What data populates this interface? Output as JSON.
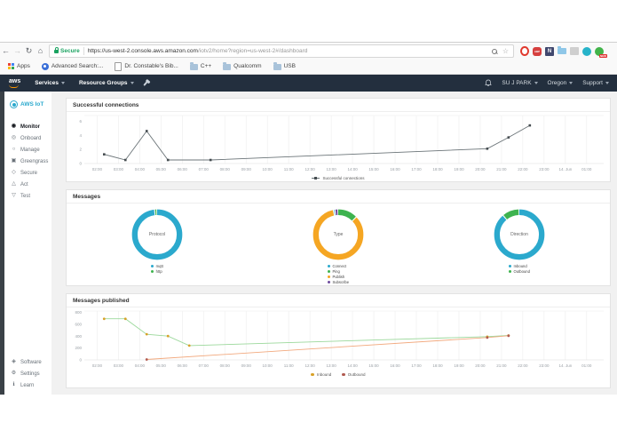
{
  "browser": {
    "address_bar": {
      "secure_label": "Secure",
      "url_host": "https://us-west-2.console.aws.amazon.com",
      "url_path": "/iotv2/home?region=us-west-2#/dashboard"
    },
    "extensions": [
      {
        "name": "red-ring-extension-icon"
      },
      {
        "name": "adblock-extension-icon",
        "label": "ABP"
      },
      {
        "name": "note-clipper-extension-icon",
        "label": "N"
      },
      {
        "name": "folder-extension-icon"
      },
      {
        "name": "gray-extension-icon"
      },
      {
        "name": "teal-circle-extension-icon"
      },
      {
        "name": "green-circle-extension-icon",
        "badge": "NEW"
      }
    ],
    "bookmarks": {
      "apps_label": "Apps",
      "items": [
        {
          "label": "Advanced Search:...",
          "icon": "badge-icon"
        },
        {
          "label": "Dr. Constable's Bib...",
          "icon": "page-icon"
        },
        {
          "label": "C++",
          "icon": "folder-icon"
        },
        {
          "label": "Qualcomm",
          "icon": "folder-icon"
        },
        {
          "label": "USB",
          "icon": "folder-icon"
        }
      ]
    }
  },
  "aws_nav": {
    "logo": "aws",
    "services": "Services",
    "resource_groups": "Resource Groups",
    "user": "SU J PARK",
    "region": "Oregon",
    "support": "Support"
  },
  "sidebar": {
    "title": "AWS IoT",
    "items": [
      {
        "label": "Monitor",
        "active": true
      },
      {
        "label": "Onboard"
      },
      {
        "label": "Manage"
      },
      {
        "label": "Greengrass"
      },
      {
        "label": "Secure"
      },
      {
        "label": "Act"
      },
      {
        "label": "Test"
      }
    ],
    "footer_items": [
      {
        "label": "Software"
      },
      {
        "label": "Settings"
      },
      {
        "label": "Learn"
      }
    ]
  },
  "panels": {
    "messages_title": "Messages"
  },
  "chart_data": [
    {
      "type": "line",
      "title": "Successful connections",
      "x_tick_labels": [
        "02:00",
        "03:00",
        "04:00",
        "05:00",
        "06:00",
        "07:00",
        "08:00",
        "09:00",
        "10:00",
        "11:00",
        "12:00",
        "13:00",
        "14:00",
        "15:00",
        "16:00",
        "17:00",
        "18:00",
        "19:00",
        "20:00",
        "21:00",
        "22:00",
        "23:00",
        "14. Jun",
        "01:00"
      ],
      "x_tick_values": [
        2,
        3,
        4,
        5,
        6,
        7,
        8,
        9,
        10,
        11,
        12,
        13,
        14,
        15,
        16,
        17,
        18,
        19,
        20,
        21,
        22,
        23,
        24,
        25
      ],
      "xlim": [
        1.4,
        25.8
      ],
      "ylim": [
        0,
        6.8
      ],
      "y_ticks": [
        0,
        2,
        4,
        6
      ],
      "grid": "vertical",
      "legend_position": "bottom",
      "series": [
        {
          "name": "Successful connections",
          "color": "#6b7478",
          "marker_color": "#454c50",
          "marker": "square",
          "points": [
            [
              2.33,
              1.3
            ],
            [
              3.33,
              0.5
            ],
            [
              4.33,
              4.6
            ],
            [
              5.33,
              0.5
            ],
            [
              7.33,
              0.5
            ],
            [
              20.33,
              2.1
            ],
            [
              21.33,
              3.7
            ],
            [
              22.33,
              5.4
            ]
          ]
        }
      ]
    },
    {
      "type": "pie",
      "title": "Protocol",
      "slices": [
        {
          "label": "mqtt",
          "value": 98.5,
          "color": "#2ba9cd"
        },
        {
          "label": "http",
          "value": 1.5,
          "color": "#3eb34f"
        }
      ]
    },
    {
      "type": "pie",
      "title": "Type",
      "draw_order": [
        1,
        2,
        0,
        3
      ],
      "slices": [
        {
          "label": "Connect",
          "value": 1,
          "color": "#2ba9cd"
        },
        {
          "label": "Ping",
          "value": 13,
          "color": "#3eb34f"
        },
        {
          "label": "Publish",
          "value": 84,
          "color": "#f5a623"
        },
        {
          "label": "Subscribe",
          "value": 2,
          "color": "#6f4d9e"
        }
      ]
    },
    {
      "type": "pie",
      "title": "Direction",
      "slices": [
        {
          "label": "Inbound",
          "value": 89,
          "color": "#2ba9cd"
        },
        {
          "label": "Outbound",
          "value": 11,
          "color": "#3eb34f"
        }
      ]
    },
    {
      "type": "line",
      "title": "Messages published",
      "x_tick_labels": [
        "02:00",
        "03:00",
        "04:00",
        "05:00",
        "06:00",
        "07:00",
        "08:00",
        "09:00",
        "10:00",
        "11:00",
        "12:00",
        "13:00",
        "14:00",
        "15:00",
        "16:00",
        "17:00",
        "18:00",
        "19:00",
        "20:00",
        "21:00",
        "22:00",
        "23:00",
        "14. Jun",
        "01:00"
      ],
      "x_tick_values": [
        2,
        3,
        4,
        5,
        6,
        7,
        8,
        9,
        10,
        11,
        12,
        13,
        14,
        15,
        16,
        17,
        18,
        19,
        20,
        21,
        22,
        23,
        24,
        25
      ],
      "xlim": [
        1.4,
        25.8
      ],
      "ylim": [
        0,
        820
      ],
      "y_ticks": [
        0,
        200,
        400,
        600,
        800
      ],
      "grid": "vertical",
      "legend_position": "bottom",
      "series": [
        {
          "name": "Inbound",
          "color": "#9bd89b",
          "marker_color": "#d8a128",
          "marker": "circle",
          "points": [
            [
              2.33,
              690
            ],
            [
              3.33,
              690
            ],
            [
              4.33,
              430
            ],
            [
              5.33,
              400
            ],
            [
              6.33,
              240
            ],
            [
              20.33,
              390
            ],
            [
              21.33,
              410
            ]
          ]
        },
        {
          "name": "Outbound",
          "color": "#f2a97e",
          "marker_color": "#b05a50",
          "marker": "circle",
          "points": [
            [
              4.33,
              8
            ],
            [
              20.33,
              375
            ],
            [
              21.33,
              405
            ]
          ]
        }
      ],
      "legend": [
        {
          "name": "Inbound",
          "color": "#d8a128"
        },
        {
          "name": "Outbound",
          "color": "#b05a50"
        }
      ]
    }
  ]
}
